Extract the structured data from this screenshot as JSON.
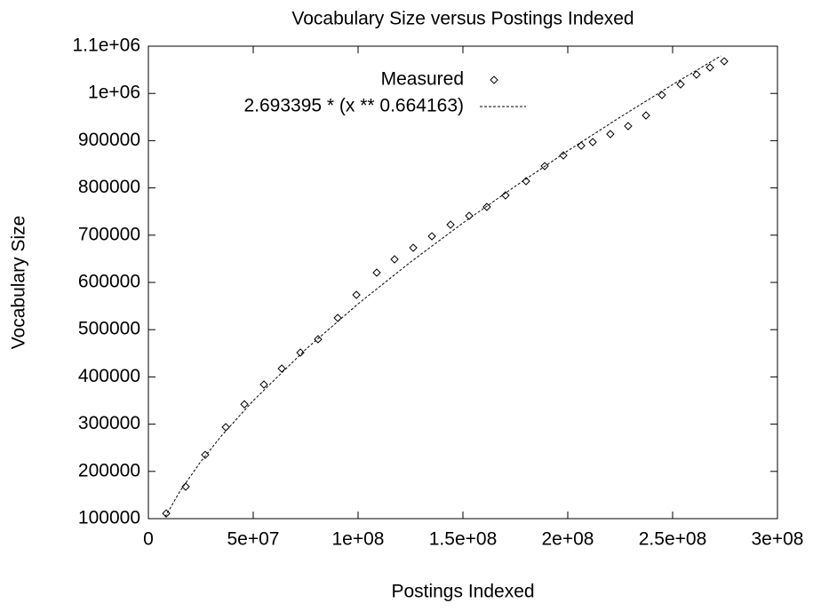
{
  "chart_data": {
    "type": "scatter",
    "title": "Vocabulary Size versus Postings Indexed",
    "x_label": "Postings Indexed",
    "y_label": "Vocabulary Size",
    "xlim": [
      0,
      300000000
    ],
    "ylim": [
      100000,
      1100000
    ],
    "xticks": [
      0,
      {
        "value": 50000000,
        "label": "5e+07"
      },
      {
        "value": 100000000,
        "label": "1e+08"
      },
      {
        "value": 150000000,
        "label": "1.5e+08"
      },
      {
        "value": 200000000,
        "label": "2e+08"
      },
      {
        "value": 250000000,
        "label": "2.5e+08"
      },
      {
        "value": 300000000,
        "label": "3e+08"
      }
    ],
    "yticks": [
      100000,
      200000,
      300000,
      400000,
      500000,
      600000,
      700000,
      800000,
      900000,
      {
        "value": 1000000,
        "label": "1e+06"
      },
      {
        "value": 1100000,
        "label": "1.1e+06"
      }
    ],
    "grid": false,
    "legend": "top-right",
    "series": [
      {
        "name": "Measured",
        "color": "#000000",
        "marker": "diamond",
        "x": [
          8500000,
          17800000,
          27100000,
          36900000,
          45800000,
          55100000,
          63600000,
          72500000,
          80900000,
          90300000,
          99200000,
          108900000,
          117400000,
          126300000,
          135200000,
          144100000,
          153000000,
          161400000,
          170300000,
          180100000,
          189000000,
          197900000,
          206400000,
          211900000,
          220300000,
          228800000,
          237300000,
          244900000,
          253800000,
          261400000,
          267800000,
          274600000
        ],
        "values": [
          111000,
          167700,
          235000,
          293600,
          342000,
          383800,
          417700,
          451500,
          479700,
          524800,
          573700,
          620700,
          648900,
          673300,
          697700,
          722200,
          741000,
          759800,
          784200,
          814300,
          846200,
          868800,
          889500,
          897000,
          913900,
          930800,
          953400,
          996600,
          1019200,
          1039800,
          1054900,
          1068000
        ]
      },
      {
        "name": "2.693395 * (x ** 0.664163)",
        "color": "#000000",
        "dash": true,
        "x": [
          8000000,
          15000000,
          25000000,
          35000000,
          50000000,
          75000000,
          100000000,
          125000000,
          150000000,
          175000000,
          200000000,
          225000000,
          250000000,
          273000000
        ],
        "values": [
          103800,
          157600,
          220900,
          276000,
          349700,
          458200,
          554600,
          643000,
          725800,
          803700,
          878500,
          949800,
          1018700,
          1079500
        ]
      }
    ]
  }
}
